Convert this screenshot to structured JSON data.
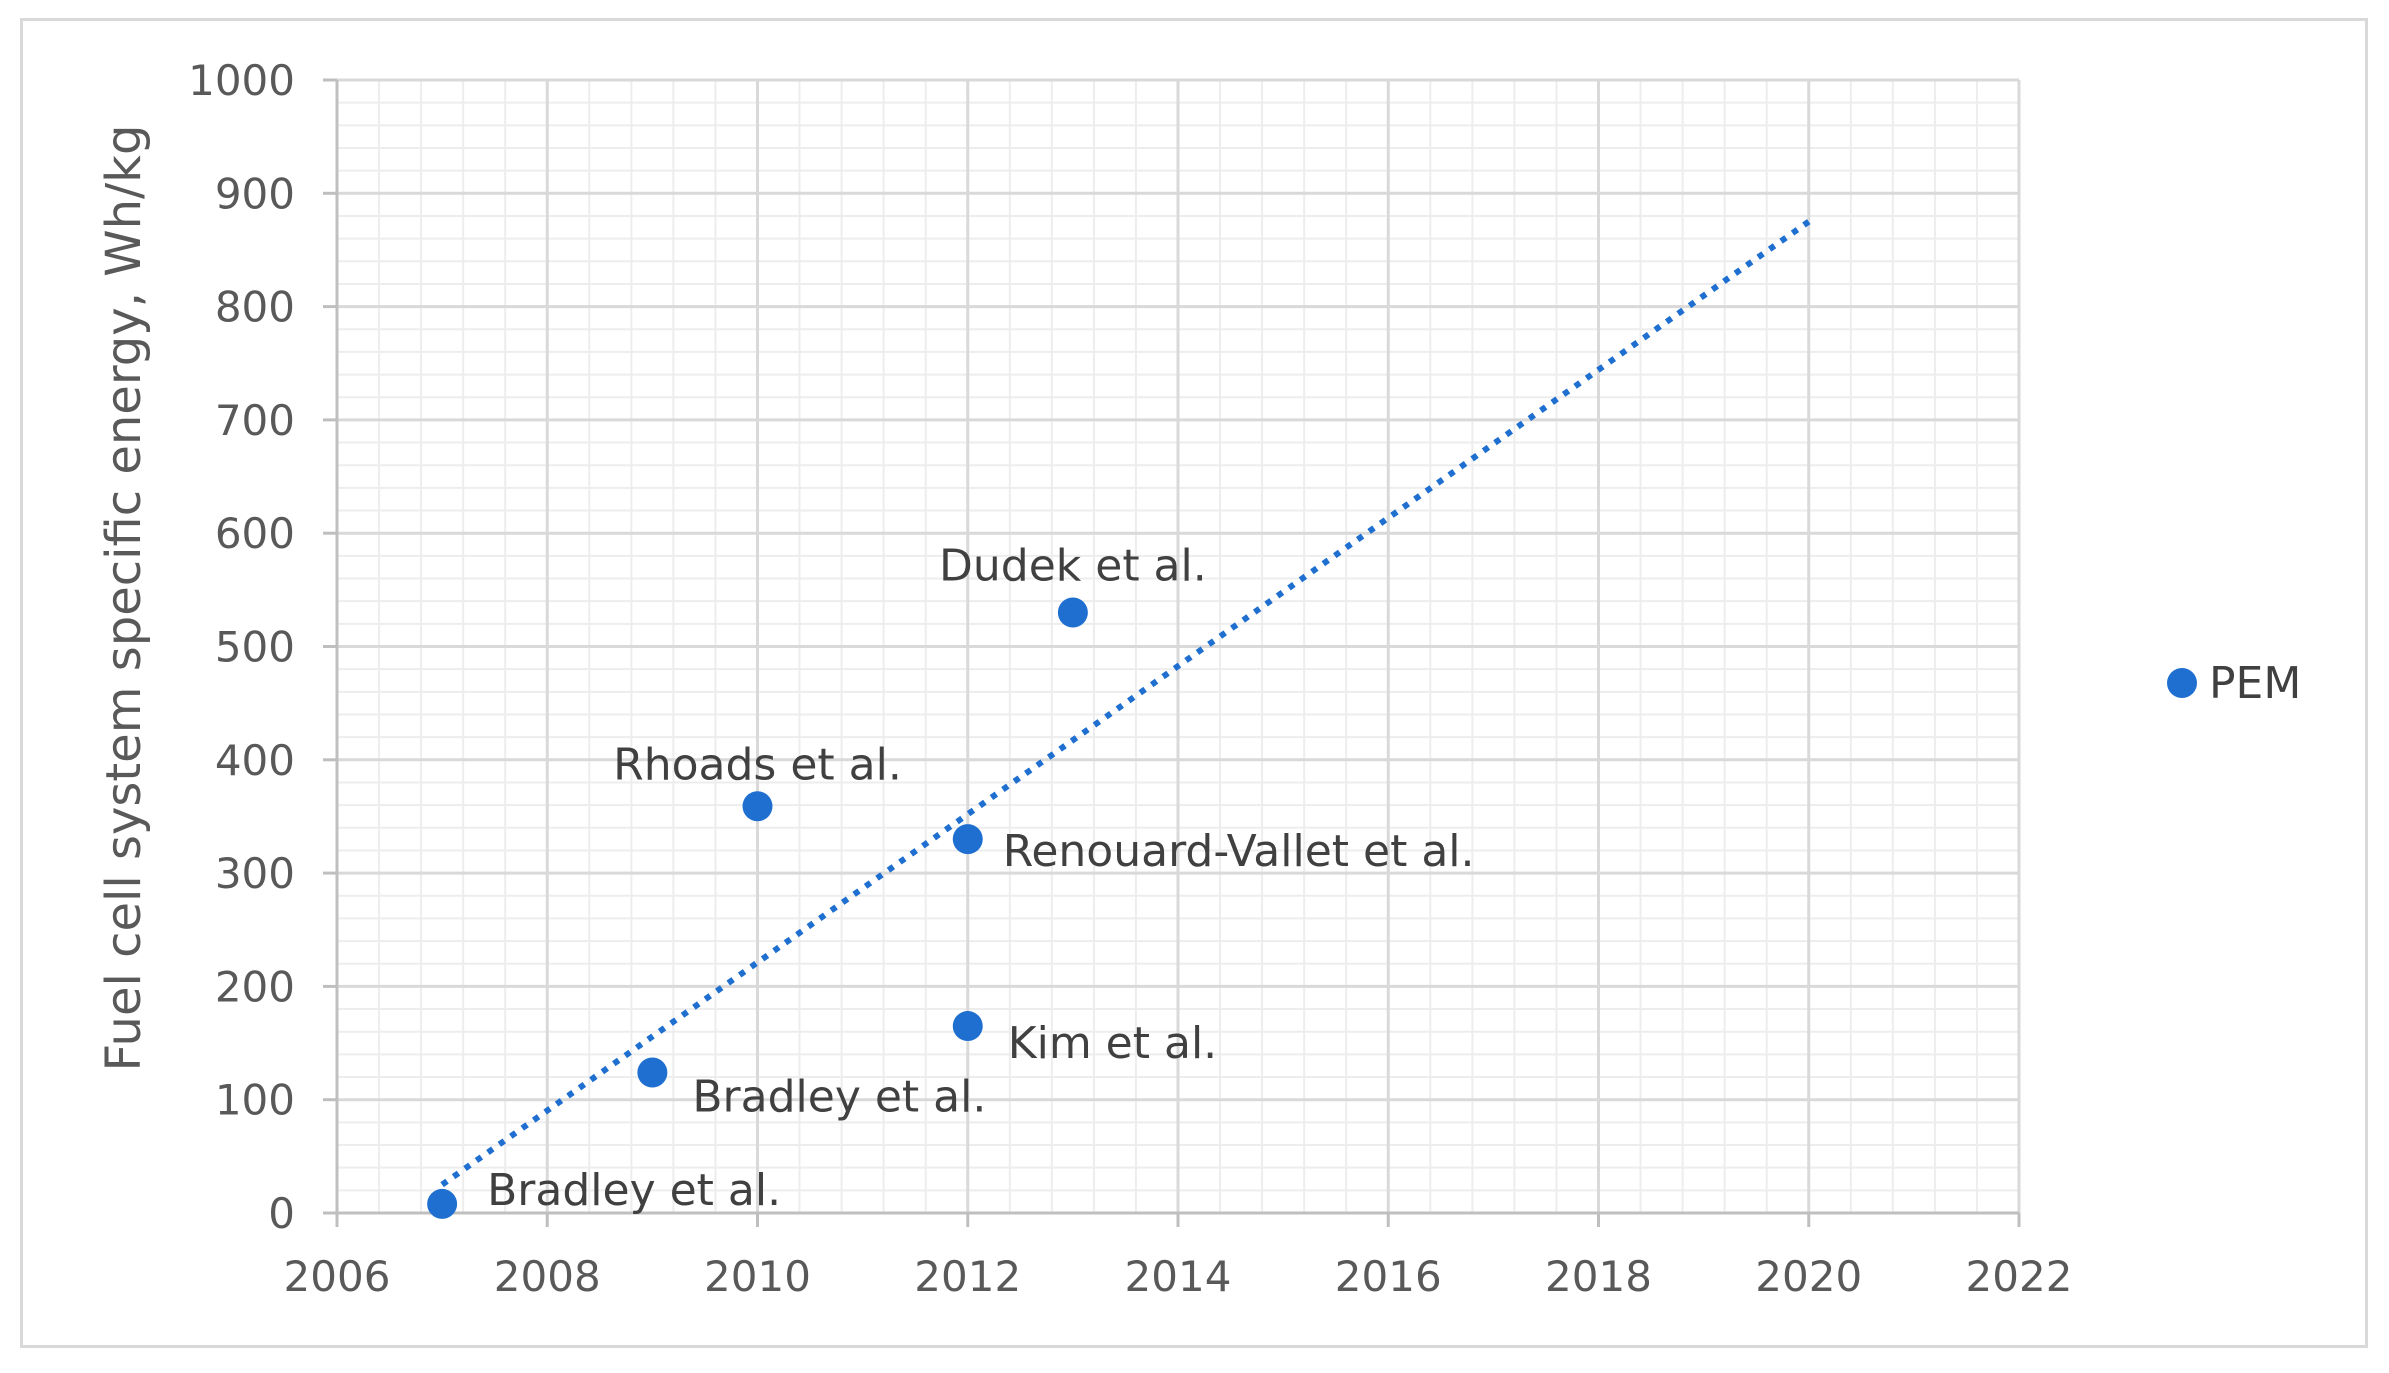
{
  "chart_data": {
    "type": "scatter",
    "title": "",
    "xlabel": "",
    "ylabel": "Fuel cell system specific energy, Wh/kg",
    "xlim": [
      2006,
      2022
    ],
    "ylim": [
      0,
      1000
    ],
    "x_ticks": [
      2006,
      2008,
      2010,
      2012,
      2014,
      2016,
      2018,
      2020,
      2022
    ],
    "y_ticks": [
      0,
      100,
      200,
      300,
      400,
      500,
      600,
      700,
      800,
      900,
      1000
    ],
    "grid": "major and minor",
    "legend_position": "right",
    "series": [
      {
        "name": "PEM",
        "color": "#1f6fd0",
        "points": [
          {
            "x": 2007,
            "y": 8,
            "label": "Bradley et al."
          },
          {
            "x": 2009,
            "y": 124,
            "label": "Bradley et al."
          },
          {
            "x": 2010,
            "y": 359,
            "label": "Rhoads et al."
          },
          {
            "x": 2012,
            "y": 330,
            "label": "Renouard-Vallet et al."
          },
          {
            "x": 2012,
            "y": 165,
            "label": "Kim et al."
          },
          {
            "x": 2013,
            "y": 530,
            "label": "Dudek et al."
          }
        ]
      }
    ],
    "trendline": {
      "style": "dotted",
      "color": "#1f6fd0",
      "start": {
        "x": 2007,
        "y": 25
      },
      "end": {
        "x": 2020,
        "y": 875
      }
    }
  }
}
